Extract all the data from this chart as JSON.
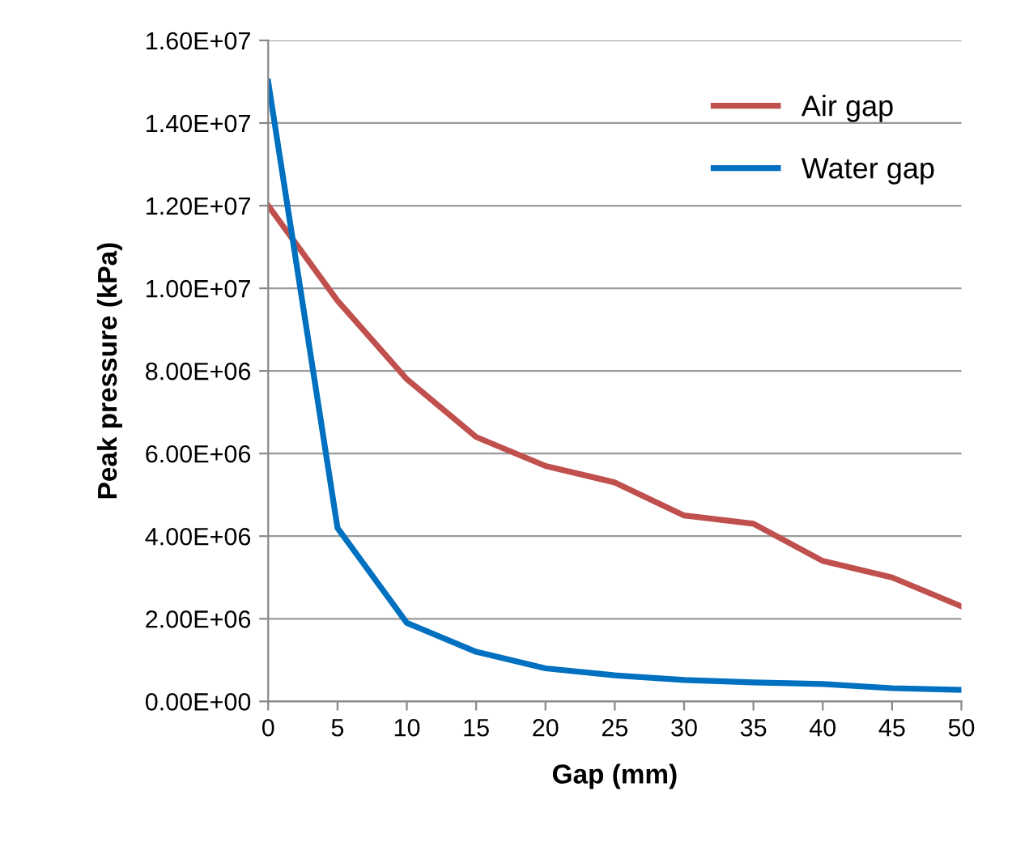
{
  "chart_data": {
    "type": "line",
    "xlabel": "Gap (mm)",
    "ylabel": "Peak pressure (kPa)",
    "x": [
      0,
      5,
      10,
      15,
      20,
      25,
      30,
      35,
      40,
      45,
      50
    ],
    "series": [
      {
        "name": "Air gap",
        "color": "#c0504d",
        "values": [
          12000000,
          9700000,
          7800000,
          6400000,
          5700000,
          5300000,
          4500000,
          4300000,
          3400000,
          3000000,
          2300000
        ]
      },
      {
        "name": "Water gap",
        "color": "#0070c0",
        "values": [
          15000000,
          4200000,
          1900000,
          1200000,
          800000,
          630000,
          520000,
          460000,
          420000,
          320000,
          280000
        ]
      }
    ],
    "xlim": [
      0,
      50
    ],
    "xticks": [
      0,
      5,
      10,
      15,
      20,
      25,
      30,
      35,
      40,
      45,
      50
    ],
    "ylim": [
      0,
      16000000
    ],
    "yticks": [
      {
        "value": 0,
        "label": "0.00E+00"
      },
      {
        "value": 2000000,
        "label": "2.00E+06"
      },
      {
        "value": 4000000,
        "label": "4.00E+06"
      },
      {
        "value": 6000000,
        "label": "6.00E+06"
      },
      {
        "value": 8000000,
        "label": "8.00E+06"
      },
      {
        "value": 10000000,
        "label": "1.00E+07"
      },
      {
        "value": 12000000,
        "label": "1.20E+07"
      },
      {
        "value": 14000000,
        "label": "1.40E+07"
      },
      {
        "value": 16000000,
        "label": "1.60E+07"
      }
    ],
    "grid": "y",
    "legend": "right",
    "marker": "none",
    "line_style": "solid"
  }
}
